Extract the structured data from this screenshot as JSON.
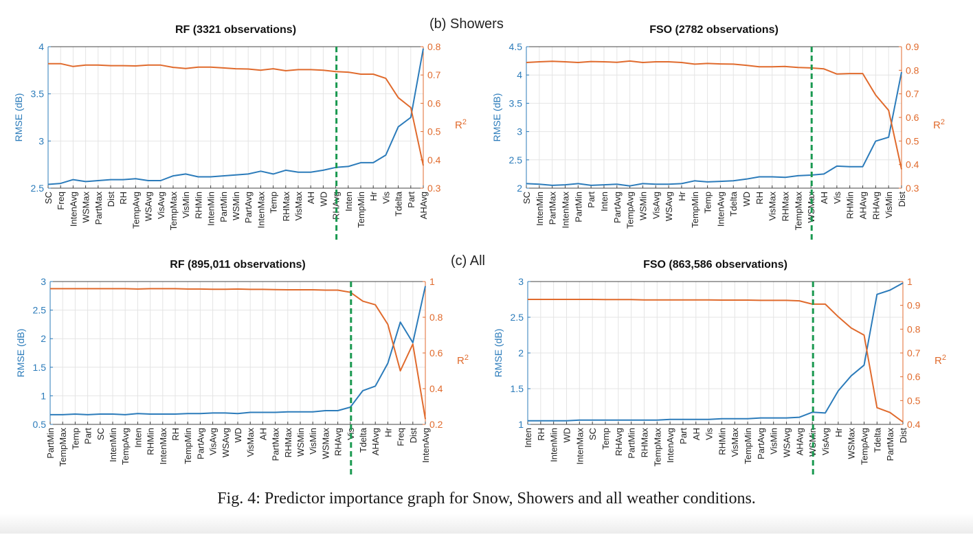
{
  "section_labels": {
    "b": "(b) Showers",
    "c": "(c) All"
  },
  "caption": "Fig. 4: Predictor importance graph for Snow, Showers and all weather conditions.",
  "colors": {
    "rmse": "#2b7bba",
    "r2": "#e06a2c",
    "divider": "#1a9950",
    "grid": "#e4e4e4"
  },
  "chart_data": [
    {
      "type": "line",
      "title": "RF (3321 observations)",
      "ylabel_left": "RMSE (dB)",
      "ylabel_right": "R2",
      "ylim_left": [
        2.5,
        4
      ],
      "yticks_left": [
        2.5,
        3,
        3.5,
        4
      ],
      "ylim_right": [
        0.3,
        0.8
      ],
      "yticks_right": [
        0.3,
        0.4,
        0.5,
        0.6,
        0.7,
        0.8
      ],
      "grid": true,
      "divider_index": 23,
      "categories": [
        "SC",
        "Freq",
        "IntenAvg",
        "WSMax",
        "PartMax",
        "Dist",
        "RH",
        "TempAvg",
        "WSAvg",
        "VisAvg",
        "TempMax",
        "VisMin",
        "RHMin",
        "IntenMin",
        "PartMin",
        "WSMin",
        "PartAvg",
        "IntenMax",
        "Temp",
        "RHMax",
        "VisMax",
        "AH",
        "WD",
        "RHAvg",
        "Inten",
        "TempMin",
        "Hr",
        "Vis",
        "Tdelta",
        "Part",
        "AHAvg"
      ],
      "series": [
        {
          "axis": "left",
          "values": [
            2.54,
            2.55,
            2.59,
            2.57,
            2.58,
            2.59,
            2.59,
            2.6,
            2.58,
            2.58,
            2.63,
            2.65,
            2.62,
            2.62,
            2.63,
            2.64,
            2.65,
            2.68,
            2.65,
            2.69,
            2.67,
            2.67,
            2.69,
            2.72,
            2.73,
            2.77,
            2.77,
            2.85,
            3.15,
            3.25,
            3.98
          ]
        },
        {
          "axis": "right",
          "values": [
            0.74,
            0.74,
            0.73,
            0.735,
            0.735,
            0.733,
            0.733,
            0.732,
            0.735,
            0.735,
            0.727,
            0.723,
            0.728,
            0.728,
            0.725,
            0.722,
            0.721,
            0.717,
            0.722,
            0.715,
            0.719,
            0.719,
            0.717,
            0.712,
            0.71,
            0.703,
            0.703,
            0.688,
            0.62,
            0.585,
            0.38
          ]
        }
      ]
    },
    {
      "type": "line",
      "title": "FSO (2782 observations)",
      "ylabel_left": "RMSE (dB)",
      "ylabel_right": "R2",
      "ylim_left": [
        2,
        4.5
      ],
      "yticks_left": [
        2,
        2.5,
        3,
        3.5,
        4,
        4.5
      ],
      "ylim_right": [
        0.3,
        0.9
      ],
      "yticks_right": [
        0.3,
        0.4,
        0.5,
        0.6,
        0.7,
        0.8,
        0.9
      ],
      "grid": true,
      "divider_index": 22,
      "categories": [
        "SC",
        "IntenMin",
        "PartMax",
        "IntenMax",
        "PartMin",
        "Part",
        "Inten",
        "PartAvg",
        "TempAvg",
        "WSMin",
        "VisAvg",
        "WSAvg",
        "Hr",
        "TempMin",
        "Temp",
        "IntenAvg",
        "Tdelta",
        "WD",
        "RH",
        "VisMax",
        "RHMax",
        "TempMax",
        "WSMax",
        "AH",
        "Vis",
        "RHMin",
        "AHAvg",
        "RHAvg",
        "VisMin",
        "Dist"
      ],
      "series": [
        {
          "axis": "left",
          "values": [
            2.08,
            2.07,
            2.05,
            2.06,
            2.08,
            2.05,
            2.06,
            2.07,
            2.04,
            2.08,
            2.07,
            2.07,
            2.08,
            2.13,
            2.11,
            2.12,
            2.13,
            2.16,
            2.2,
            2.2,
            2.19,
            2.22,
            2.23,
            2.25,
            2.39,
            2.38,
            2.38,
            2.83,
            2.9,
            4.05
          ]
        },
        {
          "axis": "right",
          "values": [
            0.833,
            0.836,
            0.838,
            0.836,
            0.833,
            0.837,
            0.836,
            0.834,
            0.839,
            0.833,
            0.836,
            0.836,
            0.833,
            0.826,
            0.829,
            0.827,
            0.826,
            0.821,
            0.815,
            0.815,
            0.816,
            0.812,
            0.81,
            0.806,
            0.784,
            0.786,
            0.786,
            0.695,
            0.63,
            0.38
          ]
        }
      ]
    },
    {
      "type": "line",
      "title": "RF (895,011 observations)",
      "ylabel_left": "RMSE (dB)",
      "ylabel_right": "R2",
      "ylim_left": [
        0.5,
        3
      ],
      "yticks_left": [
        0.5,
        1,
        1.5,
        2,
        2.5,
        3
      ],
      "ylim_right": [
        0.2,
        1
      ],
      "yticks_right": [
        0.2,
        0.4,
        0.6,
        0.8,
        1
      ],
      "grid": true,
      "divider_index": 24,
      "categories": [
        "PartMin",
        "TempMax",
        "Temp",
        "Part",
        "SC",
        "IntenMin",
        "TempAvg",
        "Inten",
        "RHMin",
        "IntenMax",
        "RH",
        "TempMin",
        "PartAvg",
        "VisAvg",
        "WSAvg",
        "WD",
        "VisMax",
        "AH",
        "PartMax",
        "RHMax",
        "WSMin",
        "VisMin",
        "WSMax",
        "RHAvg",
        "Vis",
        "Tdelta",
        "AHAvg",
        "Hr",
        "Freq",
        "Dist",
        "IntenAvg"
      ],
      "series": [
        {
          "axis": "left",
          "values": [
            0.67,
            0.67,
            0.68,
            0.67,
            0.68,
            0.68,
            0.67,
            0.69,
            0.68,
            0.68,
            0.68,
            0.69,
            0.69,
            0.7,
            0.7,
            0.69,
            0.71,
            0.71,
            0.71,
            0.72,
            0.72,
            0.72,
            0.74,
            0.74,
            0.8,
            1.09,
            1.17,
            1.57,
            2.29,
            1.93,
            2.92
          ]
        },
        {
          "axis": "right",
          "values": [
            0.96,
            0.96,
            0.96,
            0.96,
            0.96,
            0.96,
            0.96,
            0.958,
            0.96,
            0.96,
            0.96,
            0.958,
            0.958,
            0.957,
            0.957,
            0.958,
            0.956,
            0.956,
            0.955,
            0.954,
            0.954,
            0.954,
            0.952,
            0.952,
            0.94,
            0.89,
            0.87,
            0.76,
            0.5,
            0.65,
            0.23
          ]
        }
      ]
    },
    {
      "type": "line",
      "title": "FSO (863,586 observations)",
      "ylabel_left": "RMSE (dB)",
      "ylabel_right": "R2",
      "ylim_left": [
        1,
        3
      ],
      "yticks_left": [
        1,
        1.5,
        2,
        2.5,
        3
      ],
      "ylim_right": [
        0.4,
        1
      ],
      "yticks_right": [
        0.4,
        0.5,
        0.6,
        0.7,
        0.8,
        0.9,
        1
      ],
      "grid": true,
      "divider_index": 22,
      "categories": [
        "Inten",
        "RH",
        "IntenMin",
        "WD",
        "IntenMax",
        "SC",
        "Temp",
        "RHAvg",
        "PartMin",
        "RHMax",
        "TempMax",
        "IntenAvg",
        "Part",
        "AH",
        "Vis",
        "RHMin",
        "VisMax",
        "TempMin",
        "PartAvg",
        "VisMin",
        "WSAvg",
        "AHAvg",
        "WSMin",
        "VisAvg",
        "Hr",
        "WSMax",
        "TempAvg",
        "Tdelta",
        "PartMax",
        "Dist"
      ],
      "series": [
        {
          "axis": "left",
          "values": [
            1.05,
            1.05,
            1.05,
            1.05,
            1.06,
            1.06,
            1.06,
            1.06,
            1.06,
            1.06,
            1.06,
            1.07,
            1.07,
            1.07,
            1.07,
            1.08,
            1.08,
            1.08,
            1.09,
            1.09,
            1.09,
            1.1,
            1.17,
            1.16,
            1.47,
            1.68,
            1.83,
            2.82,
            2.88,
            2.98
          ]
        },
        {
          "axis": "right",
          "values": [
            0.925,
            0.925,
            0.925,
            0.925,
            0.925,
            0.925,
            0.924,
            0.924,
            0.924,
            0.923,
            0.923,
            0.923,
            0.923,
            0.923,
            0.923,
            0.922,
            0.922,
            0.922,
            0.921,
            0.921,
            0.921,
            0.919,
            0.905,
            0.905,
            0.852,
            0.805,
            0.775,
            0.47,
            0.45,
            0.41
          ]
        }
      ]
    }
  ]
}
